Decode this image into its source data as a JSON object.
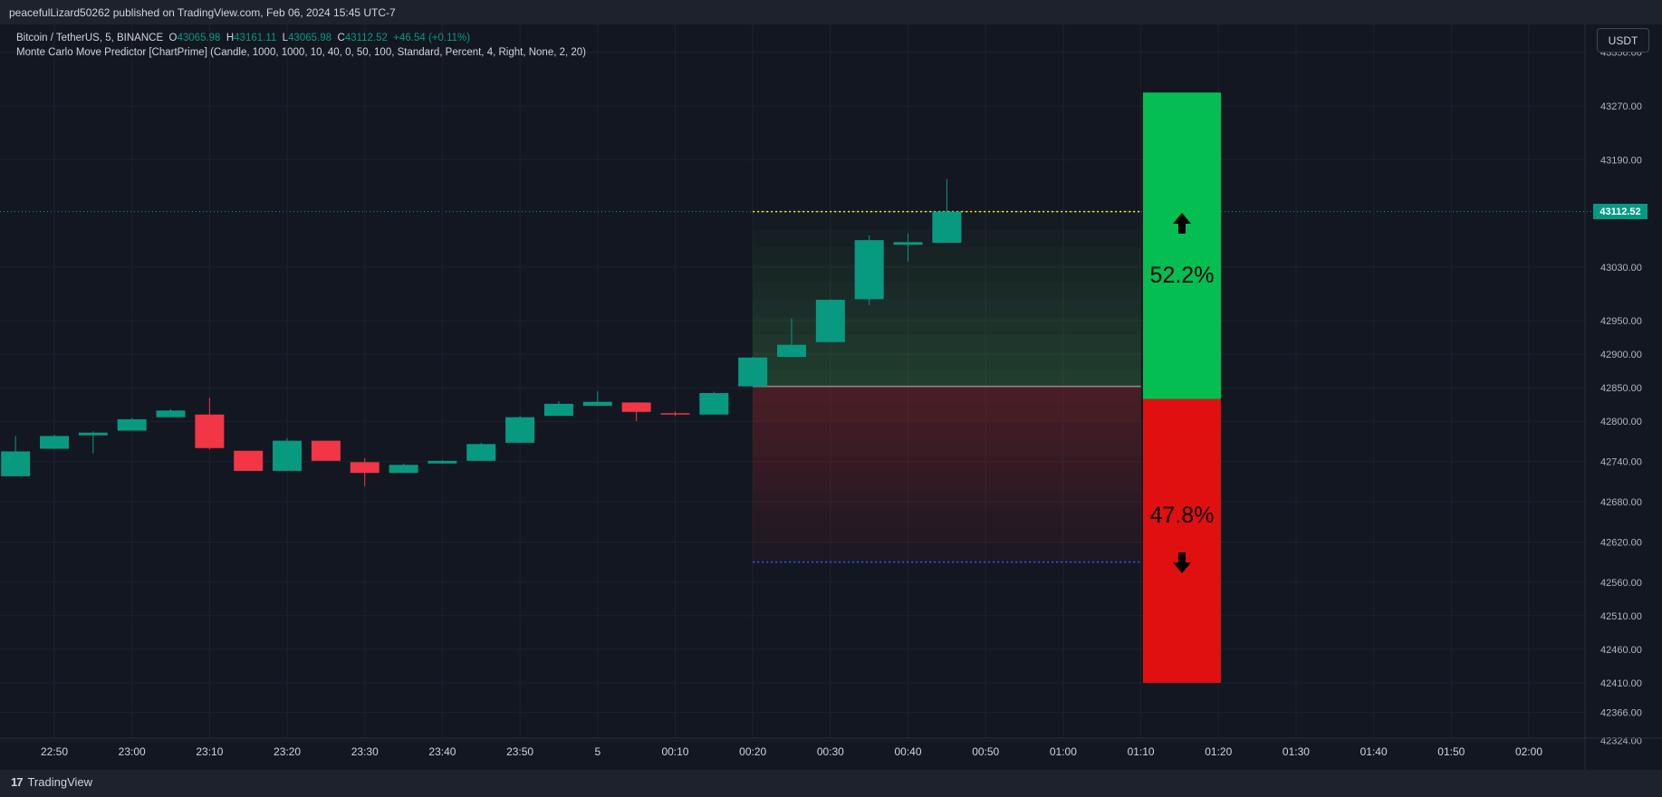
{
  "header": {
    "publish_text": "peacefulLizard50262 published on TradingView.com, Feb 06, 2024 15:45 UTC-7"
  },
  "legend": {
    "symbol": "Bitcoin / TetherUS, 5, BINANCE",
    "o_label": "O",
    "o_value": "43065.98",
    "h_label": "H",
    "h_value": "43161.11",
    "l_label": "L",
    "l_value": "43065.98",
    "c_label": "C",
    "c_value": "43112.52",
    "change": "+46.54 (+0.11%)",
    "indicator": "Monte Carlo Move Predictor [ChartPrime] (Candle, 1000, 1000, 10, 40, 0, 50, 100, Standard, Percent, 4, Right, None, 2, 20)"
  },
  "price_axis": {
    "currency": "USDT",
    "last_price_label": "43112.52"
  },
  "brand": {
    "logo_glyph": "17",
    "name": "TradingView"
  },
  "colors": {
    "background": "#131722",
    "grid": "#1e222d",
    "up": "#089981",
    "down": "#f23645",
    "bull_block": "#05be52",
    "bear_block": "#e01010"
  },
  "chart_data": {
    "type": "candlestick",
    "symbol": "Bitcoin / TetherUS",
    "interval": "5",
    "exchange": "BINANCE",
    "x_ticks": [
      "22:50",
      "23:00",
      "23:10",
      "23:20",
      "23:30",
      "23:40",
      "23:50",
      "5",
      "00:10",
      "00:20",
      "00:30",
      "00:40",
      "00:50",
      "01:00",
      "01:10",
      "01:20",
      "01:30",
      "01:40",
      "01:50",
      "02:00"
    ],
    "y_ticks": [
      43350,
      43270,
      43190,
      43112.52,
      43030,
      42950,
      42900,
      42850,
      42800,
      42740,
      42680,
      42620,
      42560,
      42510,
      42460,
      42410,
      42366,
      42324
    ],
    "y_tick_labels": [
      "43350.00",
      "43270.00",
      "43190.00",
      "43112.52",
      "43030.00",
      "42950.00",
      "42900.00",
      "42850.00",
      "42800.00",
      "42740.00",
      "42680.00",
      "42620.00",
      "42560.00",
      "42510.00",
      "42460.00",
      "42410.00",
      "42366.00",
      "42324.00"
    ],
    "grid": true,
    "candles": [
      {
        "time": "22:45",
        "open": 42718,
        "high": 42778,
        "low": 42718,
        "close": 42755
      },
      {
        "time": "22:50",
        "open": 42759,
        "high": 42780,
        "low": 42759,
        "close": 42778
      },
      {
        "time": "22:55",
        "open": 42779,
        "high": 42785,
        "low": 42752,
        "close": 42783
      },
      {
        "time": "23:00",
        "open": 42786,
        "high": 42805,
        "low": 42786,
        "close": 42803
      },
      {
        "time": "23:05",
        "open": 42806,
        "high": 42818,
        "low": 42806,
        "close": 42816
      },
      {
        "time": "23:10",
        "open": 42810,
        "high": 42835,
        "low": 42758,
        "close": 42760
      },
      {
        "time": "23:15",
        "open": 42756,
        "high": 42756,
        "low": 42726,
        "close": 42726
      },
      {
        "time": "23:20",
        "open": 42726,
        "high": 42775,
        "low": 42726,
        "close": 42771
      },
      {
        "time": "23:25",
        "open": 42771,
        "high": 42771,
        "low": 42741,
        "close": 42741
      },
      {
        "time": "23:30",
        "open": 42739,
        "high": 42745,
        "low": 42703,
        "close": 42723
      },
      {
        "time": "23:35",
        "open": 42723,
        "high": 42737,
        "low": 42723,
        "close": 42735
      },
      {
        "time": "23:40",
        "open": 42737,
        "high": 42742,
        "low": 42737,
        "close": 42741
      },
      {
        "time": "23:45",
        "open": 42741,
        "high": 42768,
        "low": 42741,
        "close": 42766
      },
      {
        "time": "23:50",
        "open": 42768,
        "high": 42808,
        "low": 42768,
        "close": 42806
      },
      {
        "time": "23:55",
        "open": 42808,
        "high": 42830,
        "low": 42808,
        "close": 42826
      },
      {
        "time": "00:00",
        "open": 42823,
        "high": 42845,
        "low": 42823,
        "close": 42829
      },
      {
        "time": "00:05",
        "open": 42828,
        "high": 42828,
        "low": 42800,
        "close": 42814
      },
      {
        "time": "00:10",
        "open": 42812,
        "high": 42815,
        "low": 42808,
        "close": 42810
      },
      {
        "time": "00:15",
        "open": 42810,
        "high": 42844,
        "low": 42810,
        "close": 42842
      },
      {
        "time": "00:20",
        "open": 42852,
        "high": 42896,
        "low": 42852,
        "close": 42895
      },
      {
        "time": "00:25",
        "open": 42896,
        "high": 42953,
        "low": 42896,
        "close": 42914
      },
      {
        "time": "00:30",
        "open": 42918,
        "high": 42982,
        "low": 42918,
        "close": 42981
      },
      {
        "time": "00:35",
        "open": 42982,
        "high": 43077,
        "low": 42973,
        "close": 43070
      },
      {
        "time": "00:40",
        "open": 43063,
        "high": 43080,
        "low": 43038,
        "close": 43067
      },
      {
        "time": "00:45",
        "open": 43065.98,
        "high": 43161.11,
        "low": 43065.98,
        "close": 43112.52
      }
    ],
    "projection": {
      "start_time": "00:20",
      "end_time": "01:10",
      "current_price": 43112.52,
      "baseline": 42852,
      "upper_line": 43112.52,
      "lower_line": 42590
    },
    "probability_bar": {
      "up_percent": 52.2,
      "down_percent": 47.8,
      "up_label": "52.2%",
      "down_label": "47.8%",
      "top": 43290,
      "split": 42833,
      "bottom": 42410
    }
  }
}
